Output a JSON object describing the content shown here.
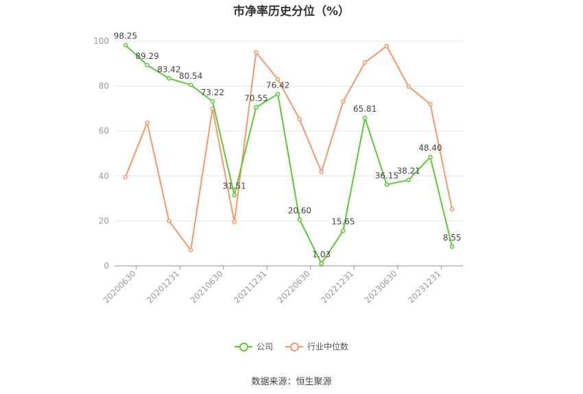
{
  "colors": {
    "company": "#5cc836",
    "industry": "#f59769",
    "grid": "#e6e6e6",
    "axis": "#999999",
    "label": "#444444"
  },
  "source_label": "数据来源：恒生聚源",
  "chart_data": {
    "type": "line",
    "title": "市净率历史分位（%）",
    "ylim": [
      0,
      100
    ],
    "yticks": [
      0,
      20,
      40,
      60,
      80,
      100
    ],
    "xtick_labels": [
      "20200630",
      "20201231",
      "20210630",
      "20211231",
      "20220630",
      "20221231",
      "20230630",
      "20231231"
    ],
    "x_count": 16,
    "grid": true,
    "legend_position": "bottom",
    "series": [
      {
        "name": "公司",
        "color": "#5cc836",
        "show_labels": true,
        "labels": [
          "98.25",
          "89.29",
          "83.42",
          "80.54",
          "73.22",
          "31.51",
          "70.55",
          "76.42",
          "20.60",
          "1.03",
          "15.65",
          "65.81",
          "36.15",
          "38.21",
          "48.40",
          "8.55"
        ],
        "values": [
          98.25,
          89.29,
          83.42,
          80.54,
          73.22,
          31.51,
          70.55,
          76.42,
          20.6,
          1.03,
          15.65,
          65.81,
          36.15,
          38.21,
          48.4,
          8.55
        ]
      },
      {
        "name": "行业中位数",
        "color": "#f59769",
        "show_labels": false,
        "values": [
          39.5,
          63.8,
          20.0,
          7.0,
          70.0,
          19.5,
          95.0,
          83.0,
          65.2,
          41.8,
          73.2,
          90.5,
          97.8,
          79.8,
          72.0,
          25.2
        ]
      }
    ]
  }
}
